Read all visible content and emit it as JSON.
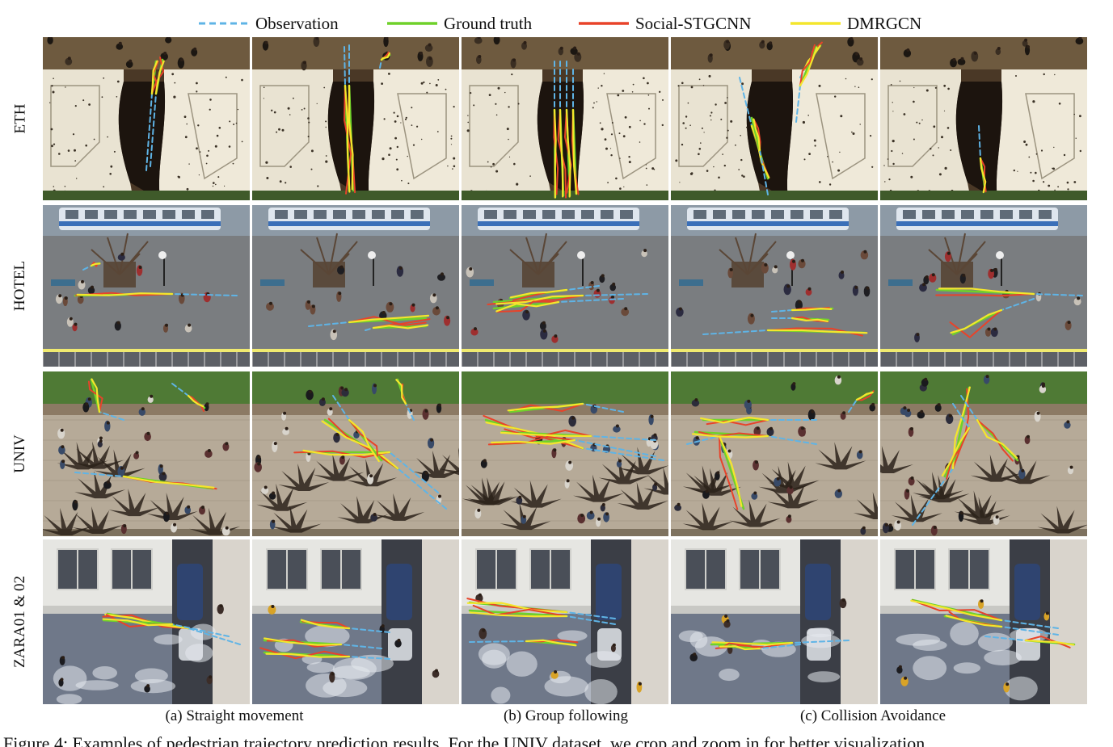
{
  "legend": [
    {
      "label": "Observation",
      "color": "#5fb4e6",
      "style": "dashed"
    },
    {
      "label": "Ground truth",
      "color": "#6fd12a",
      "style": "solid"
    },
    {
      "label": "Social-STGCNN",
      "color": "#e8432a",
      "style": "solid"
    },
    {
      "label": "DMRGCN",
      "color": "#f4e62c",
      "style": "solid"
    }
  ],
  "rows": [
    {
      "label": "ETH",
      "scene": "eth"
    },
    {
      "label": "HOTEL",
      "scene": "hotel"
    },
    {
      "label": "UNIV",
      "scene": "univ"
    },
    {
      "label": "ZARA01 & 02",
      "scene": "zara"
    }
  ],
  "captions": [
    {
      "label": "(a) Straight movement"
    },
    {
      "label": "(b) Group following"
    },
    {
      "label": "(c) Collision Avoidance"
    }
  ],
  "figure_text": "Figure 4: Examples of pedestrian trajectory prediction results. For the UNIV dataset, we crop and zoom in for better visualization"
}
